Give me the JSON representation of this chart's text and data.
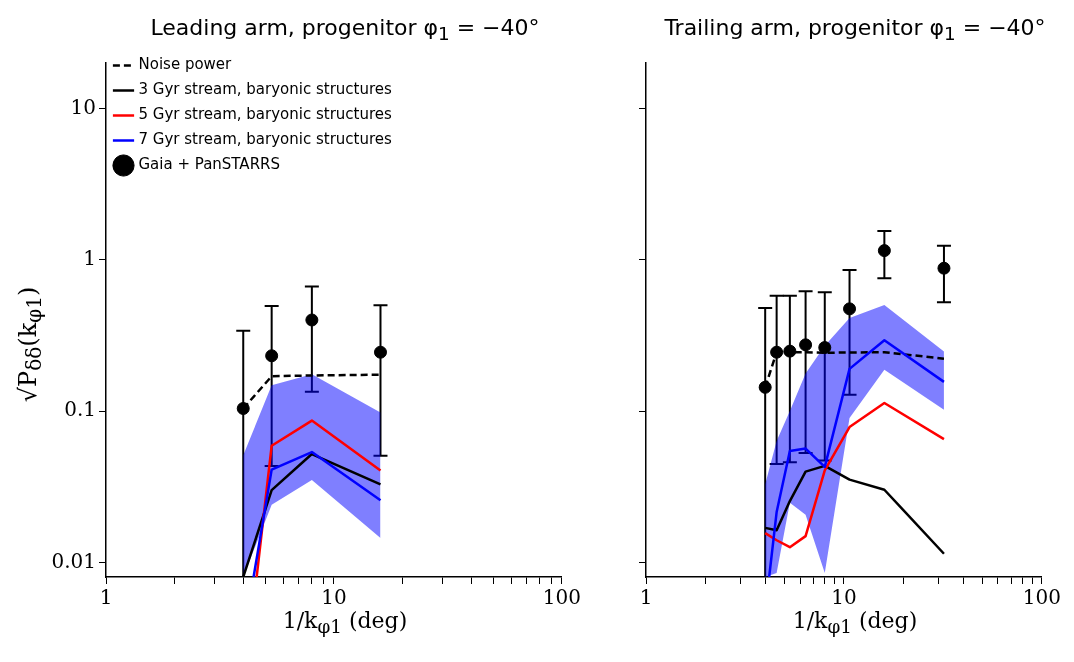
{
  "chart_data": [
    {
      "type": "line",
      "title": "Leading arm, progenitor φ$_{1}$ = −40°",
      "xlabel": "1/k$_{φ1}$ (deg)",
      "ylabel": "√P$_{δδ}$(k$_{φ1}$)",
      "log": "xy",
      "grid": false,
      "legend": "top left",
      "xlim": [
        1,
        100
      ],
      "ylim": [
        0.008,
        20
      ],
      "xticks": [
        1,
        {
          "value": 2,
          "label": null
        },
        {
          "value": 3,
          "label": null
        },
        {
          "value": 4,
          "label": null
        },
        {
          "value": 5,
          "label": null
        },
        {
          "value": 6,
          "label": null
        },
        {
          "value": 7,
          "label": null
        },
        {
          "value": 8,
          "label": null
        },
        {
          "value": 9,
          "label": null
        },
        10,
        {
          "value": 20,
          "label": null
        },
        {
          "value": 30,
          "label": null
        },
        {
          "value": 40,
          "label": null
        },
        {
          "value": 50,
          "label": null
        },
        {
          "value": 60,
          "label": null
        },
        {
          "value": 70,
          "label": null
        },
        {
          "value": 80,
          "label": null
        },
        {
          "value": 90,
          "label": null
        },
        100
      ],
      "yticks": [
        0.01,
        0.1,
        1,
        10
      ],
      "series": [
        {
          "name": "Noise power",
          "color": "#000000",
          "line_style": "dashed",
          "marker": "none",
          "x": [
            4,
            5.33,
            8,
            16
          ],
          "values": [
            0.104,
            0.17,
            0.172,
            0.174
          ]
        },
        {
          "name": "3 Gyr stream, baryonic structures",
          "color": "#000000",
          "line_style": "solid",
          "marker": "none",
          "x": [
            4,
            5.33,
            8,
            16
          ],
          "values": [
            0.008,
            0.03,
            0.052,
            0.0328
          ]
        },
        {
          "name": "5 Gyr stream, baryonic structures",
          "color": "#ff0000",
          "line_style": "solid",
          "marker": "none",
          "x": [
            4.58,
            5.33,
            8,
            16
          ],
          "values": [
            0.008,
            0.059,
            0.0865,
            0.0405
          ]
        },
        {
          "name": "7 Gyr stream, baryonic structures",
          "color": "#0000ff",
          "line_style": "solid",
          "marker": "none",
          "x": [
            4,
            4.44,
            5.33,
            8,
            16
          ],
          "values": [
            null,
            0.008,
            0.041,
            0.0536,
            0.0257
          ],
          "lower": [
            0.008,
            null,
            0.024,
            0.035,
            0.0145
          ],
          "upper": [
            0.051,
            null,
            0.148,
            0.175,
            0.098
          ]
        },
        {
          "name": "Gaia + PanSTARRS",
          "type": "scatter",
          "color": "#000000",
          "marker": "circle",
          "x": [
            4,
            5.33,
            8,
            16
          ],
          "values": [
            0.104,
            0.232,
            0.4,
            0.245
          ],
          "errors": [
            [
              0.008,
              0.34
            ],
            [
              0.0434,
              0.495
            ],
            [
              0.134,
              0.665
            ],
            [
              0.0507,
              0.5
            ]
          ]
        }
      ]
    },
    {
      "type": "line",
      "title": "Trailing arm, progenitor φ$_{1}$ = −40°",
      "xlabel": "1/k$_{φ1}$ (deg)",
      "log": "xy",
      "grid": false,
      "tick_labels": "x",
      "xlim": [
        1,
        100
      ],
      "ylim": [
        0.008,
        20
      ],
      "xticks": [
        1,
        {
          "value": 2,
          "label": null
        },
        {
          "value": 3,
          "label": null
        },
        {
          "value": 4,
          "label": null
        },
        {
          "value": 5,
          "label": null
        },
        {
          "value": 6,
          "label": null
        },
        {
          "value": 7,
          "label": null
        },
        {
          "value": 8,
          "label": null
        },
        {
          "value": 9,
          "label": null
        },
        10,
        {
          "value": 20,
          "label": null
        },
        {
          "value": 30,
          "label": null
        },
        {
          "value": 40,
          "label": null
        },
        {
          "value": 50,
          "label": null
        },
        {
          "value": 60,
          "label": null
        },
        {
          "value": 70,
          "label": null
        },
        {
          "value": 80,
          "label": null
        },
        {
          "value": 90,
          "label": null
        },
        100
      ],
      "yticks": [
        0.01,
        0.1,
        1,
        10
      ],
      "series": [
        {
          "color": "#000000",
          "line_style": "dashed",
          "marker": "none",
          "x": [
            4,
            4.57,
            5.33,
            6.4,
            8,
            10.67,
            16,
            32
          ],
          "values": [
            0.1436,
            0.245,
            0.245,
            0.245,
            0.243,
            0.244,
            0.245,
            0.222
          ]
        },
        {
          "color": "#000000",
          "line_style": "solid",
          "marker": "none",
          "x": [
            4,
            4.57,
            5.33,
            6.4,
            8,
            10.67,
            16,
            32
          ],
          "values": [
            0.0169,
            0.0163,
            0.0254,
            0.0398,
            0.0434,
            0.0352,
            0.0302,
            0.0114
          ]
        },
        {
          "color": "#ff0000",
          "line_style": "solid",
          "marker": "none",
          "x": [
            4,
            4.57,
            5.33,
            6.4,
            8,
            10.67,
            16,
            32
          ],
          "values": [
            0.0156,
            0.014,
            0.0126,
            0.0149,
            0.0405,
            0.0784,
            0.113,
            0.0653
          ]
        },
        {
          "color": "#0000ff",
          "line_style": "solid",
          "marker": "none",
          "x": [
            4,
            4.19,
            4.57,
            5.33,
            6.4,
            8,
            10.67,
            16,
            32
          ],
          "values": [
            null,
            0.008,
            0.0215,
            0.0544,
            0.0565,
            0.0428,
            0.19,
            0.294,
            0.156
          ],
          "lower": [
            0.008,
            null,
            0.0085,
            0.0248,
            0.0206,
            0.0085,
            0.09,
            0.1875,
            0.102
          ],
          "upper": [
            0.0328,
            null,
            0.0635,
            0.1,
            0.177,
            0.27,
            0.412,
            0.502,
            0.248
          ]
        },
        {
          "type": "scatter",
          "color": "#000000",
          "marker": "circle",
          "x": [
            4,
            4.57,
            5.33,
            6.4,
            8,
            10.67,
            16,
            32
          ],
          "values": [
            0.1436,
            0.245,
            0.249,
            0.274,
            0.263,
            0.474,
            1.15,
            0.88
          ],
          "errors": [
            [
              0.008,
              0.48
            ],
            [
              0.0447,
              0.578
            ],
            [
              0.0459,
              0.578
            ],
            [
              0.0529,
              0.62
            ],
            [
              0.0472,
              0.61
            ],
            [
              0.128,
              0.857
            ],
            [
              0.755,
              1.55
            ],
            [
              0.524,
              1.24
            ]
          ]
        }
      ]
    }
  ]
}
